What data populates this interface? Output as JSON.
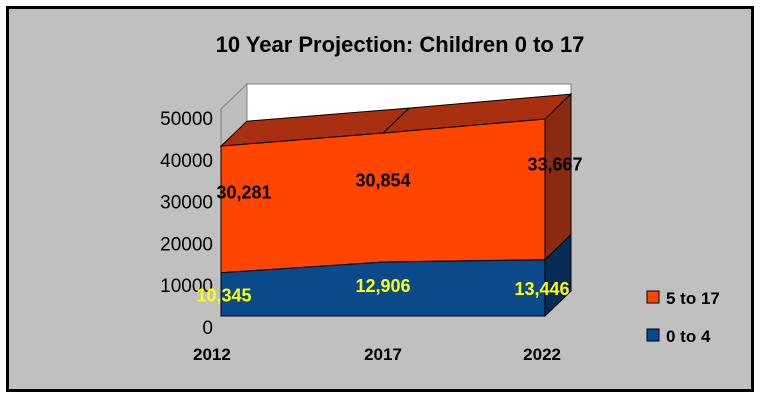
{
  "chart_data": {
    "type": "area",
    "title": "10 Year Projection: Children 0 to 17",
    "categories": [
      "2012",
      "2017",
      "2022"
    ],
    "ylim": [
      0,
      50000
    ],
    "yticks": [
      "0",
      "10000",
      "20000",
      "30000",
      "40000",
      "50000"
    ],
    "stacked": true,
    "three_d": true,
    "series": [
      {
        "name": "0 to 4",
        "values": [
          10345,
          12906,
          13446
        ],
        "labels": [
          "10,345",
          "12,906",
          "13,446"
        ],
        "color": "#0b4a8a",
        "label_color": "#ffff00"
      },
      {
        "name": "5 to 17",
        "values": [
          30281,
          30854,
          33667
        ],
        "labels": [
          "30,281",
          "30,854",
          "33,667"
        ],
        "color": "#ff4500",
        "label_color": "#000000"
      }
    ],
    "legend": "right",
    "legend_order": [
      "5 to 17",
      "0 to 4"
    ],
    "background": "#c0c0c0"
  }
}
